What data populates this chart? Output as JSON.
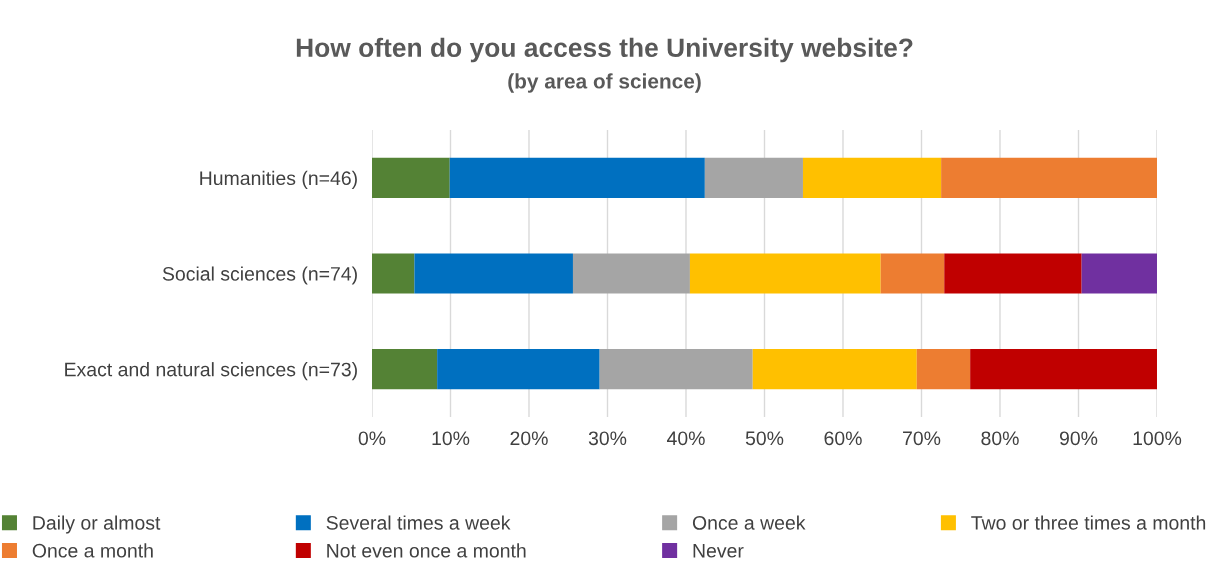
{
  "chart_data": {
    "type": "bar",
    "orientation": "horizontal",
    "stacked": true,
    "title": "How often do you access the University website?",
    "subtitle": "(by area of science)",
    "categories": [
      "Humanities (n=46)",
      "Social sciences (n=74)",
      "Exact and natural sciences (n=73)"
    ],
    "series": [
      {
        "name": "Daily or almost",
        "color": "#548235",
        "values": [
          9.9,
          5.4,
          8.3
        ]
      },
      {
        "name": "Several times a week",
        "color": "#0070c0",
        "values": [
          32.5,
          20.2,
          20.7
        ]
      },
      {
        "name": "Once a week",
        "color": "#a5a5a5",
        "values": [
          12.5,
          14.9,
          19.5
        ]
      },
      {
        "name": "Two or three times a month",
        "color": "#ffc000",
        "values": [
          17.6,
          24.3,
          20.9
        ]
      },
      {
        "name": "Once a month",
        "color": "#ed7d31",
        "values": [
          27.5,
          8.1,
          6.8
        ]
      },
      {
        "name": "Not even once a month",
        "color": "#c00000",
        "values": [
          0,
          17.5,
          23.8
        ]
      },
      {
        "name": "Never",
        "color": "#7030a0",
        "values": [
          0,
          9.7,
          0
        ]
      }
    ],
    "xlim": [
      0,
      100
    ],
    "xticks": [
      {
        "value": 0,
        "label": "0%"
      },
      {
        "value": 10,
        "label": "10%"
      },
      {
        "value": 20,
        "label": "20%"
      },
      {
        "value": 30,
        "label": "30%"
      },
      {
        "value": 40,
        "label": "40%"
      },
      {
        "value": 50,
        "label": "50%"
      },
      {
        "value": 60,
        "label": "60%"
      },
      {
        "value": 70,
        "label": "70%"
      },
      {
        "value": 80,
        "label": "80%"
      },
      {
        "value": 90,
        "label": "90%"
      },
      {
        "value": 100,
        "label": "100%"
      }
    ],
    "grid": "x",
    "legend": "bottom"
  }
}
